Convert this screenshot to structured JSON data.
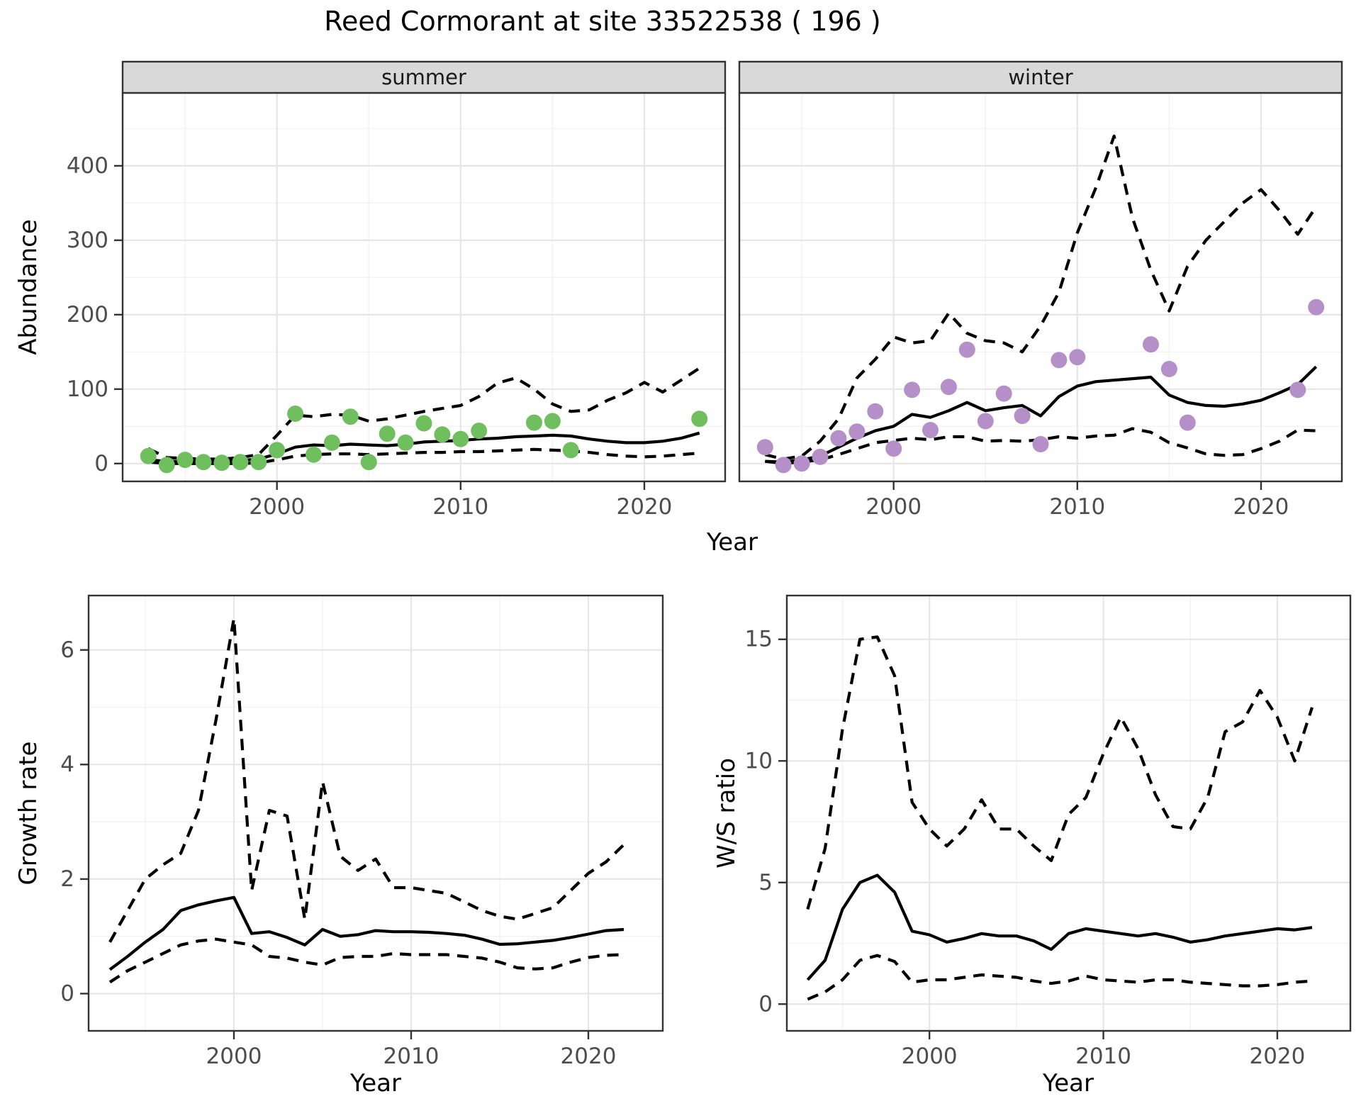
{
  "title": "Reed Cormorant at site 33522538 ( 196 )",
  "colors": {
    "summer_points": "#6fbf5e",
    "winter_points": "#b48fc8",
    "line": "#000000",
    "strip_bg": "#d9d9d9",
    "strip_text": "#1a1a1a",
    "panel_border": "#333333",
    "grid_major": "#e6e6e6",
    "grid_minor": "#f2f2f2",
    "tick_label": "#4d4d4d",
    "background": "#ffffff"
  },
  "chart_data": [
    {
      "id": "abundance-summer",
      "type": "line",
      "facet_label": "summer",
      "xlabel": "Year",
      "ylabel": "Abundance",
      "xlim": [
        1991.6,
        2024.4
      ],
      "ylim": [
        -24,
        498
      ],
      "xticks": [
        2000,
        2010,
        2020
      ],
      "xminor": [
        1995,
        2005,
        2015
      ],
      "yticks": [
        0,
        100,
        200,
        300,
        400
      ],
      "yminor": [
        50,
        150,
        250,
        350,
        450
      ],
      "show_yticks": true,
      "legend": "none",
      "years": [
        1993,
        1994,
        1995,
        1996,
        1997,
        1998,
        1999,
        2000,
        2001,
        2002,
        2003,
        2004,
        2005,
        2006,
        2007,
        2008,
        2009,
        2010,
        2011,
        2012,
        2013,
        2014,
        2015,
        2016,
        2017,
        2018,
        2019,
        2020,
        2021,
        2022,
        2023
      ],
      "series": [
        {
          "name": "upper_95ci",
          "style": "dashed",
          "values": [
            20,
            8,
            7,
            6,
            6,
            8,
            12,
            38,
            65,
            63,
            66,
            65,
            57,
            60,
            65,
            70,
            74,
            78,
            90,
            108,
            115,
            100,
            80,
            70,
            72,
            85,
            95,
            109,
            96,
            112,
            128
          ]
        },
        {
          "name": "mean",
          "style": "solid",
          "values": [
            5,
            3,
            3,
            3,
            3,
            4,
            6,
            13,
            22,
            25,
            24,
            26,
            25,
            24,
            26,
            29,
            30,
            31,
            33,
            34,
            36,
            37,
            38,
            37,
            33,
            30,
            28,
            28,
            30,
            34,
            41
          ]
        },
        {
          "name": "lower_95ci",
          "style": "dashed",
          "values": [
            2,
            0,
            0,
            0,
            0,
            0,
            1,
            5,
            10,
            12,
            13,
            13,
            12,
            13,
            14,
            15,
            15,
            16,
            16,
            17,
            18,
            19,
            18,
            17,
            15,
            12,
            10,
            9,
            10,
            12,
            14
          ]
        }
      ],
      "points": {
        "color": "#6fbf5e",
        "years": [
          1993,
          1994,
          1995,
          1996,
          1997,
          1998,
          1999,
          2000,
          2001,
          2002,
          2003,
          2004,
          2005,
          2006,
          2007,
          2008,
          2009,
          2010,
          2011,
          2014,
          2015,
          2016,
          2023
        ],
        "values": [
          10,
          -2,
          5,
          2,
          1,
          2,
          2,
          18,
          67,
          12,
          28,
          63,
          2,
          40,
          28,
          54,
          39,
          33,
          44,
          55,
          57,
          18,
          60
        ]
      }
    },
    {
      "id": "abundance-winter",
      "type": "line",
      "facet_label": "winter",
      "xlabel": "Year",
      "ylabel": "Abundance",
      "xlim": [
        1991.6,
        2024.4
      ],
      "ylim": [
        -24,
        498
      ],
      "xticks": [
        2000,
        2010,
        2020
      ],
      "xminor": [
        1995,
        2005,
        2015
      ],
      "yticks": [
        0,
        100,
        200,
        300,
        400
      ],
      "yminor": [
        50,
        150,
        250,
        350,
        450
      ],
      "show_yticks": false,
      "legend": "none",
      "years": [
        1993,
        1994,
        1995,
        1996,
        1997,
        1998,
        1999,
        2000,
        2001,
        2002,
        2003,
        2004,
        2005,
        2006,
        2007,
        2008,
        2009,
        2010,
        2011,
        2012,
        2013,
        2014,
        2015,
        2016,
        2017,
        2018,
        2019,
        2020,
        2021,
        2022,
        2023
      ],
      "series": [
        {
          "name": "upper_95ci",
          "style": "dashed",
          "values": [
            12,
            6,
            10,
            30,
            60,
            115,
            140,
            170,
            162,
            165,
            202,
            175,
            165,
            162,
            150,
            185,
            230,
            310,
            370,
            440,
            330,
            260,
            205,
            265,
            300,
            325,
            350,
            368,
            340,
            308,
            345
          ]
        },
        {
          "name": "mean",
          "style": "solid",
          "values": [
            3,
            2,
            5,
            10,
            22,
            34,
            44,
            50,
            66,
            62,
            71,
            82,
            71,
            75,
            78,
            64,
            90,
            104,
            110,
            112,
            114,
            116,
            92,
            82,
            78,
            77,
            80,
            85,
            95,
            106,
            130
          ]
        },
        {
          "name": "lower_95ci",
          "style": "dashed",
          "values": [
            3,
            0,
            2,
            5,
            12,
            20,
            28,
            31,
            34,
            32,
            36,
            36,
            30,
            31,
            30,
            32,
            36,
            34,
            37,
            38,
            47,
            42,
            28,
            21,
            13,
            11,
            12,
            20,
            30,
            45,
            44
          ]
        }
      ],
      "points": {
        "color": "#b48fc8",
        "years": [
          1993,
          1994,
          1995,
          1996,
          1997,
          1998,
          1999,
          2000,
          2001,
          2002,
          2003,
          2004,
          2005,
          2006,
          2007,
          2008,
          2009,
          2010,
          2014,
          2015,
          2016,
          2022,
          2023
        ],
        "values": [
          22,
          -2,
          0,
          9,
          34,
          43,
          70,
          20,
          99,
          45,
          103,
          153,
          57,
          94,
          64,
          26,
          139,
          143,
          160,
          127,
          55,
          99,
          210
        ]
      }
    },
    {
      "id": "growth-rate",
      "type": "line",
      "facet_label": null,
      "xlabel": "Year",
      "ylabel": "Growth rate",
      "xlim": [
        1991.8,
        2024.2
      ],
      "ylim": [
        -0.65,
        6.95
      ],
      "xticks": [
        2000,
        2010,
        2020
      ],
      "xminor": [
        1995,
        2005,
        2015
      ],
      "yticks": [
        0,
        2,
        4,
        6
      ],
      "yminor": [
        1,
        3,
        5
      ],
      "show_yticks": true,
      "legend": "none",
      "years": [
        1993,
        1994,
        1995,
        1996,
        1997,
        1998,
        1999,
        2000,
        2001,
        2002,
        2003,
        2004,
        2005,
        2006,
        2007,
        2008,
        2009,
        2010,
        2011,
        2012,
        2013,
        2014,
        2015,
        2016,
        2017,
        2018,
        2019,
        2020,
        2021,
        2022
      ],
      "series": [
        {
          "name": "upper_95ci",
          "style": "dashed",
          "values": [
            0.9,
            1.45,
            2.0,
            2.25,
            2.45,
            3.2,
            4.8,
            6.55,
            1.8,
            3.2,
            3.1,
            1.3,
            3.7,
            2.4,
            2.15,
            2.35,
            1.85,
            1.85,
            1.8,
            1.75,
            1.6,
            1.45,
            1.35,
            1.3,
            1.4,
            1.5,
            1.8,
            2.1,
            2.3,
            2.6
          ]
        },
        {
          "name": "mean",
          "style": "solid",
          "values": [
            0.42,
            0.65,
            0.9,
            1.12,
            1.45,
            1.55,
            1.62,
            1.68,
            1.05,
            1.08,
            0.98,
            0.85,
            1.12,
            1.0,
            1.03,
            1.1,
            1.08,
            1.08,
            1.07,
            1.05,
            1.02,
            0.95,
            0.86,
            0.87,
            0.9,
            0.93,
            0.98,
            1.04,
            1.1,
            1.12
          ]
        },
        {
          "name": "lower_95ci",
          "style": "dashed",
          "values": [
            0.2,
            0.4,
            0.55,
            0.7,
            0.85,
            0.92,
            0.95,
            0.9,
            0.85,
            0.65,
            0.62,
            0.55,
            0.5,
            0.63,
            0.65,
            0.65,
            0.7,
            0.68,
            0.68,
            0.68,
            0.65,
            0.62,
            0.55,
            0.45,
            0.43,
            0.45,
            0.55,
            0.63,
            0.67,
            0.68
          ]
        }
      ],
      "points": null
    },
    {
      "id": "ws-ratio",
      "type": "line",
      "facet_label": null,
      "xlabel": "Year",
      "ylabel": "W/S ratio",
      "xlim": [
        1991.8,
        2024.2
      ],
      "ylim": [
        -1.1,
        16.8
      ],
      "xticks": [
        2000,
        2010,
        2020
      ],
      "xminor": [
        1995,
        2005,
        2015
      ],
      "yticks": [
        0,
        5,
        10,
        15
      ],
      "yminor": [
        2.5,
        7.5,
        12.5
      ],
      "show_yticks": true,
      "legend": "none",
      "years": [
        1993,
        1994,
        1995,
        1996,
        1997,
        1998,
        1999,
        2000,
        2001,
        2002,
        2003,
        2004,
        2005,
        2006,
        2007,
        2008,
        2009,
        2010,
        2011,
        2012,
        2013,
        2014,
        2015,
        2016,
        2017,
        2018,
        2019,
        2020,
        2021,
        2022
      ],
      "series": [
        {
          "name": "upper_95ci",
          "style": "dashed",
          "values": [
            3.9,
            6.4,
            11.3,
            15.0,
            15.1,
            13.5,
            8.3,
            7.2,
            6.5,
            7.2,
            8.4,
            7.2,
            7.2,
            6.5,
            5.9,
            7.8,
            8.5,
            10.3,
            11.8,
            10.5,
            8.6,
            7.3,
            7.2,
            8.5,
            11.2,
            11.6,
            12.9,
            11.8,
            10.0,
            12.2
          ]
        },
        {
          "name": "mean",
          "style": "solid",
          "values": [
            1.0,
            1.8,
            3.9,
            5.0,
            5.3,
            4.6,
            3.0,
            2.85,
            2.55,
            2.7,
            2.9,
            2.8,
            2.8,
            2.6,
            2.25,
            2.9,
            3.1,
            3.0,
            2.9,
            2.8,
            2.9,
            2.75,
            2.55,
            2.65,
            2.8,
            2.9,
            3.0,
            3.1,
            3.05,
            3.15
          ]
        },
        {
          "name": "lower_95ci",
          "style": "dashed",
          "values": [
            0.2,
            0.5,
            1.0,
            1.8,
            2.0,
            1.75,
            0.9,
            1.0,
            1.0,
            1.1,
            1.2,
            1.15,
            1.1,
            0.95,
            0.85,
            0.95,
            1.15,
            1.0,
            0.95,
            0.9,
            1.0,
            1.0,
            0.9,
            0.85,
            0.8,
            0.75,
            0.75,
            0.8,
            0.9,
            0.95
          ]
        }
      ],
      "points": null
    }
  ]
}
